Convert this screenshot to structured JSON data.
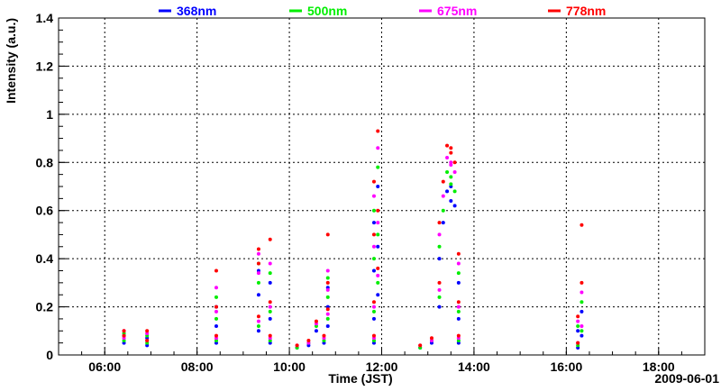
{
  "chart_data": {
    "type": "scatter",
    "xlabel": "Time (JST)",
    "ylabel": "Intensity (a.u.)",
    "date": "2009-06-01",
    "xlim": [
      "05:00",
      "19:00"
    ],
    "ylim": [
      0,
      1.4
    ],
    "grid": true,
    "legend_position": "top",
    "x_ticks": [
      "06:00",
      "08:00",
      "10:00",
      "12:00",
      "14:00",
      "16:00",
      "18:00"
    ],
    "y_ticks": [
      "0",
      "0.2",
      "0.4",
      "0.6",
      "0.8",
      "1",
      "1.2",
      "1.4"
    ],
    "series": [
      {
        "name": "368nm",
        "color": "#0000ff",
        "points": [
          [
            "06:25",
            0.05
          ],
          [
            "06:25",
            0.08
          ],
          [
            "06:55",
            0.04
          ],
          [
            "06:55",
            0.07
          ],
          [
            "08:25",
            0.12
          ],
          [
            "08:25",
            0.2
          ],
          [
            "08:25",
            0.05
          ],
          [
            "09:20",
            0.25
          ],
          [
            "09:20",
            0.1
          ],
          [
            "09:20",
            0.35
          ],
          [
            "09:35",
            0.15
          ],
          [
            "09:35",
            0.3
          ],
          [
            "09:35",
            0.05
          ],
          [
            "10:10",
            0.03
          ],
          [
            "10:25",
            0.04
          ],
          [
            "10:35",
            0.1
          ],
          [
            "10:50",
            0.2
          ],
          [
            "10:50",
            0.12
          ],
          [
            "10:50",
            0.28
          ],
          [
            "10:45",
            0.05
          ],
          [
            "11:50",
            0.15
          ],
          [
            "11:50",
            0.35
          ],
          [
            "11:50",
            0.55
          ],
          [
            "11:55",
            0.7
          ],
          [
            "11:55",
            0.45
          ],
          [
            "11:50",
            0.05
          ],
          [
            "11:55",
            0.25
          ],
          [
            "12:50",
            0.03
          ],
          [
            "13:05",
            0.05
          ],
          [
            "13:15",
            0.2
          ],
          [
            "13:15",
            0.4
          ],
          [
            "13:20",
            0.55
          ],
          [
            "13:25",
            0.68
          ],
          [
            "13:30",
            0.64
          ],
          [
            "13:35",
            0.62
          ],
          [
            "13:30",
            0.7
          ],
          [
            "13:40",
            0.3
          ],
          [
            "13:40",
            0.15
          ],
          [
            "13:40",
            0.05
          ],
          [
            "16:15",
            0.03
          ],
          [
            "16:15",
            0.1
          ],
          [
            "16:20",
            0.18
          ],
          [
            "16:20",
            0.08
          ]
        ]
      },
      {
        "name": "500nm",
        "color": "#00ee00",
        "points": [
          [
            "06:25",
            0.06
          ],
          [
            "06:25",
            0.09
          ],
          [
            "06:55",
            0.05
          ],
          [
            "06:55",
            0.08
          ],
          [
            "08:25",
            0.15
          ],
          [
            "08:25",
            0.24
          ],
          [
            "08:25",
            0.06
          ],
          [
            "09:20",
            0.3
          ],
          [
            "09:20",
            0.12
          ],
          [
            "09:20",
            0.38
          ],
          [
            "09:35",
            0.18
          ],
          [
            "09:35",
            0.34
          ],
          [
            "09:35",
            0.06
          ],
          [
            "10:10",
            0.03
          ],
          [
            "10:25",
            0.05
          ],
          [
            "10:35",
            0.12
          ],
          [
            "10:50",
            0.24
          ],
          [
            "10:50",
            0.15
          ],
          [
            "10:50",
            0.32
          ],
          [
            "10:45",
            0.06
          ],
          [
            "11:50",
            0.18
          ],
          [
            "11:50",
            0.4
          ],
          [
            "11:50",
            0.6
          ],
          [
            "11:55",
            0.78
          ],
          [
            "11:55",
            0.5
          ],
          [
            "11:50",
            0.06
          ],
          [
            "11:55",
            0.3
          ],
          [
            "12:50",
            0.03
          ],
          [
            "13:05",
            0.06
          ],
          [
            "13:15",
            0.24
          ],
          [
            "13:15",
            0.45
          ],
          [
            "13:20",
            0.6
          ],
          [
            "13:25",
            0.76
          ],
          [
            "13:30",
            0.71
          ],
          [
            "13:35",
            0.68
          ],
          [
            "13:30",
            0.74
          ],
          [
            "13:40",
            0.34
          ],
          [
            "13:40",
            0.18
          ],
          [
            "13:40",
            0.06
          ],
          [
            "16:15",
            0.04
          ],
          [
            "16:15",
            0.12
          ],
          [
            "16:20",
            0.22
          ],
          [
            "16:20",
            0.1
          ]
        ]
      },
      {
        "name": "675nm",
        "color": "#ff00ff",
        "points": [
          [
            "06:25",
            0.07
          ],
          [
            "06:25",
            0.1
          ],
          [
            "06:55",
            0.06
          ],
          [
            "06:55",
            0.09
          ],
          [
            "08:25",
            0.18
          ],
          [
            "08:25",
            0.28
          ],
          [
            "08:25",
            0.07
          ],
          [
            "09:20",
            0.34
          ],
          [
            "09:20",
            0.14
          ],
          [
            "09:20",
            0.42
          ],
          [
            "09:35",
            0.2
          ],
          [
            "09:35",
            0.38
          ],
          [
            "09:35",
            0.07
          ],
          [
            "10:10",
            0.04
          ],
          [
            "10:25",
            0.05
          ],
          [
            "10:35",
            0.13
          ],
          [
            "10:50",
            0.27
          ],
          [
            "10:50",
            0.17
          ],
          [
            "10:50",
            0.35
          ],
          [
            "10:45",
            0.07
          ],
          [
            "11:50",
            0.2
          ],
          [
            "11:50",
            0.45
          ],
          [
            "11:50",
            0.66
          ],
          [
            "11:55",
            0.86
          ],
          [
            "11:55",
            0.55
          ],
          [
            "11:50",
            0.07
          ],
          [
            "11:55",
            0.33
          ],
          [
            "12:50",
            0.04
          ],
          [
            "13:05",
            0.06
          ],
          [
            "13:15",
            0.27
          ],
          [
            "13:15",
            0.5
          ],
          [
            "13:20",
            0.66
          ],
          [
            "13:25",
            0.82
          ],
          [
            "13:30",
            0.79
          ],
          [
            "13:35",
            0.76
          ],
          [
            "13:30",
            0.8
          ],
          [
            "13:40",
            0.38
          ],
          [
            "13:40",
            0.2
          ],
          [
            "13:40",
            0.07
          ],
          [
            "16:15",
            0.05
          ],
          [
            "16:15",
            0.14
          ],
          [
            "16:20",
            0.26
          ],
          [
            "16:20",
            0.12
          ]
        ]
      },
      {
        "name": "778nm",
        "color": "#ff0000",
        "points": [
          [
            "06:25",
            0.08
          ],
          [
            "06:25",
            0.1
          ],
          [
            "06:55",
            0.06
          ],
          [
            "06:55",
            0.1
          ],
          [
            "08:25",
            0.2
          ],
          [
            "08:25",
            0.35
          ],
          [
            "08:25",
            0.08
          ],
          [
            "09:20",
            0.38
          ],
          [
            "09:20",
            0.16
          ],
          [
            "09:20",
            0.44
          ],
          [
            "09:35",
            0.22
          ],
          [
            "09:35",
            0.48
          ],
          [
            "09:35",
            0.08
          ],
          [
            "10:10",
            0.04
          ],
          [
            "10:25",
            0.06
          ],
          [
            "10:35",
            0.14
          ],
          [
            "10:50",
            0.3
          ],
          [
            "10:50",
            0.19
          ],
          [
            "10:50",
            0.5
          ],
          [
            "10:45",
            0.08
          ],
          [
            "11:50",
            0.22
          ],
          [
            "11:50",
            0.5
          ],
          [
            "11:50",
            0.72
          ],
          [
            "11:55",
            0.93
          ],
          [
            "11:55",
            0.6
          ],
          [
            "11:50",
            0.08
          ],
          [
            "11:55",
            0.36
          ],
          [
            "12:50",
            0.04
          ],
          [
            "13:05",
            0.07
          ],
          [
            "13:15",
            0.3
          ],
          [
            "13:15",
            0.55
          ],
          [
            "13:20",
            0.72
          ],
          [
            "13:25",
            0.87
          ],
          [
            "13:30",
            0.84
          ],
          [
            "13:35",
            0.8
          ],
          [
            "13:30",
            0.86
          ],
          [
            "13:40",
            0.42
          ],
          [
            "13:40",
            0.22
          ],
          [
            "13:40",
            0.08
          ],
          [
            "16:15",
            0.05
          ],
          [
            "16:15",
            0.16
          ],
          [
            "16:20",
            0.3
          ],
          [
            "16:20",
            0.54
          ]
        ]
      }
    ]
  }
}
